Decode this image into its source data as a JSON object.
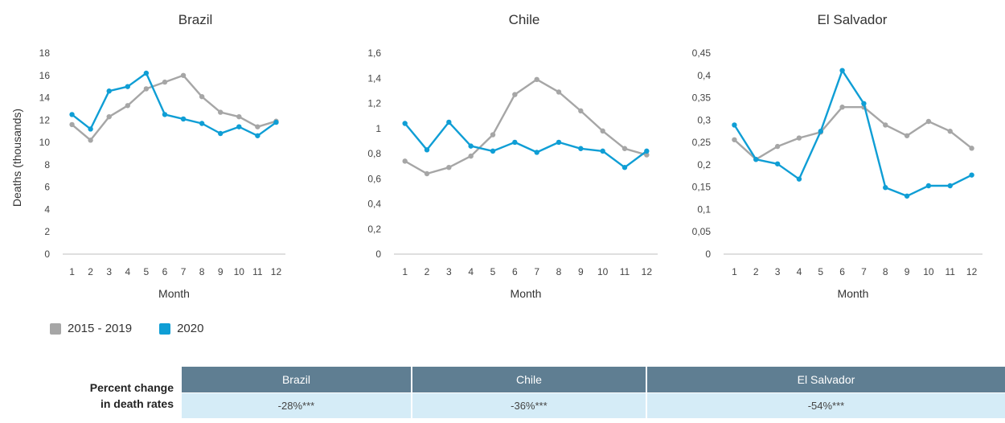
{
  "colors": {
    "baseline": "#a6a6a6",
    "current": "#0f9ed5",
    "header_bg": "#5f7e92",
    "cell_bg": "#d5ecf7"
  },
  "y_axis_label": "Deaths (thousands)",
  "legend": [
    {
      "label": "2015 - 2019",
      "color": "#a6a6a6"
    },
    {
      "label": "2020",
      "color": "#0f9ed5"
    }
  ],
  "chart_data": [
    {
      "type": "line",
      "title": "Brazil",
      "xlabel": "Month",
      "ylabel": "Deaths (thousands)",
      "x": [
        1,
        2,
        3,
        4,
        5,
        6,
        7,
        8,
        9,
        10,
        11,
        12
      ],
      "ylim": [
        0,
        18
      ],
      "yticks": [
        "0",
        "2",
        "4",
        "6",
        "8",
        "10",
        "12",
        "14",
        "16",
        "18"
      ],
      "series": [
        {
          "name": "2015 - 2019",
          "values": [
            11.6,
            10.2,
            12.3,
            13.3,
            14.8,
            15.4,
            16.0,
            14.1,
            12.7,
            12.3,
            11.4,
            11.9
          ]
        },
        {
          "name": "2020",
          "values": [
            12.5,
            11.2,
            14.6,
            15.0,
            16.2,
            12.5,
            12.1,
            11.7,
            10.8,
            11.4,
            10.6,
            11.8
          ]
        }
      ]
    },
    {
      "type": "line",
      "title": "Chile",
      "xlabel": "Month",
      "ylabel": "",
      "x": [
        1,
        2,
        3,
        4,
        5,
        6,
        7,
        8,
        9,
        10,
        11,
        12
      ],
      "ylim": [
        0,
        1.6
      ],
      "yticks": [
        "0",
        "0,2",
        "0,4",
        "0,6",
        "0,8",
        "1",
        "1,2",
        "1,4",
        "1,6"
      ],
      "series": [
        {
          "name": "2015 - 2019",
          "values": [
            0.74,
            0.64,
            0.69,
            0.78,
            0.95,
            1.27,
            1.39,
            1.29,
            1.14,
            0.98,
            0.84,
            0.79
          ]
        },
        {
          "name": "2020",
          "values": [
            1.04,
            0.83,
            1.05,
            0.86,
            0.82,
            0.89,
            0.81,
            0.89,
            0.84,
            0.82,
            0.69,
            0.82
          ]
        }
      ]
    },
    {
      "type": "line",
      "title": "El Salvador",
      "xlabel": "Month",
      "ylabel": "",
      "x": [
        1,
        2,
        3,
        4,
        5,
        6,
        7,
        8,
        9,
        10,
        11,
        12
      ],
      "ylim": [
        0,
        0.45
      ],
      "yticks": [
        "0",
        "0,05",
        "0,1",
        "0,15",
        "0,2",
        "0,25",
        "0,3",
        "0,35",
        "0,4",
        "0,45"
      ],
      "series": [
        {
          "name": "2015 - 2019",
          "values": [
            0.256,
            0.212,
            0.241,
            0.26,
            0.273,
            0.329,
            0.329,
            0.289,
            0.265,
            0.297,
            0.275,
            0.237
          ]
        },
        {
          "name": "2020",
          "values": [
            0.289,
            0.212,
            0.202,
            0.168,
            0.275,
            0.411,
            0.337,
            0.149,
            0.13,
            0.153,
            0.153,
            0.177
          ]
        }
      ]
    }
  ],
  "table": {
    "row_label": [
      "Percent change",
      "in death rates"
    ],
    "headers": [
      "Brazil",
      "Chile",
      "El Salvador"
    ],
    "values": [
      "-28%***",
      "-36%***",
      "-54%***"
    ]
  }
}
